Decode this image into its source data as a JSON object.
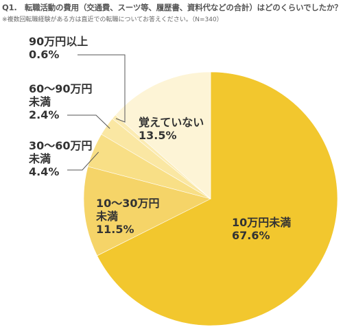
{
  "header": {
    "question": "Q1.　転職活動の費用（交通費、スーツ等、履歴書、資料代などの合計）はどのくらいでしたか？",
    "note": "※複数回転職経験がある方は直近での転職についてお答えください。（N=340）"
  },
  "colors": {
    "slice_1": "#F2C72E",
    "slice_2": "#F5D468",
    "slice_3": "#F8DF86",
    "slice_4": "#FAE7A3",
    "slice_5": "#FBEBB3",
    "slice_6": "#FDF4D6",
    "leader": "#555555"
  },
  "chart_data": {
    "type": "pie",
    "start": "12 o'clock, clockwise",
    "slices": [
      {
        "label_lines": [
          "10万円未満"
        ],
        "value": 67.6,
        "value_label": "67.6%"
      },
      {
        "label_lines": [
          "10～30万円",
          "未満"
        ],
        "value": 11.5,
        "value_label": "11.5%"
      },
      {
        "label_lines": [
          "30～60万円",
          "未満"
        ],
        "value": 4.4,
        "value_label": "4.4%"
      },
      {
        "label_lines": [
          "60～90万円",
          "未満"
        ],
        "value": 2.4,
        "value_label": "2.4%"
      },
      {
        "label_lines": [
          "90万円以上"
        ],
        "value": 0.6,
        "value_label": "0.6%"
      },
      {
        "label_lines": [
          "覚えていない"
        ],
        "value": 13.5,
        "value_label": "13.5%"
      }
    ]
  }
}
